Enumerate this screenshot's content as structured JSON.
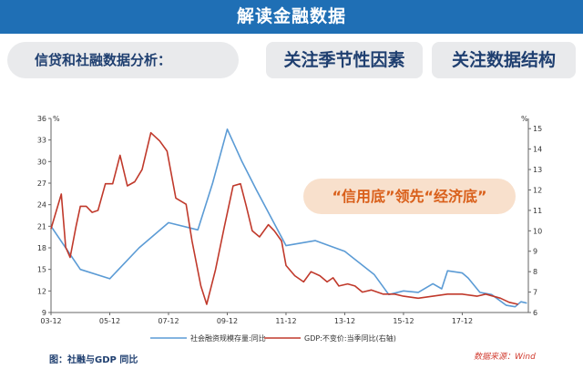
{
  "header": {
    "title": "解读金融数据"
  },
  "topics": {
    "left": "信贷和社融数据分析：",
    "mid": "关注季节性因素",
    "right": "关注数据结构"
  },
  "callout": {
    "text": "“信用底”领先“经济底”"
  },
  "caption": {
    "figure": "图：社融与GDP 同比",
    "source": "数据来源：Wind"
  },
  "colors": {
    "banner": "#1f6fb5",
    "pill": "#e9eaec",
    "callout_bg": "#f8e0cc",
    "callout_text": "#d95f1a",
    "line_blue": "#5b9bd5",
    "line_red": "#c0392b"
  },
  "chart_data": {
    "type": "line",
    "title": "",
    "x_labels": [
      "03-12",
      "05-12",
      "07-12",
      "09-12",
      "11-12",
      "13-12",
      "15-12",
      "17-12"
    ],
    "x_range": [
      2003.0,
      2019.25
    ],
    "y_left": {
      "unit": "%",
      "ticks": [
        9,
        12,
        15,
        18,
        21,
        24,
        27,
        30,
        33,
        36
      ],
      "range": [
        9,
        36
      ]
    },
    "y_right": {
      "unit": "%",
      "ticks": [
        6,
        7,
        8,
        9,
        10,
        11,
        12,
        13,
        14,
        15
      ],
      "range": [
        6,
        15.5
      ]
    },
    "grid": false,
    "legend_position": "bottom",
    "series": [
      {
        "name": "社会融资规模存量:同比",
        "axis": "left",
        "points": [
          [
            2003.0,
            21
          ],
          [
            2003.5,
            18
          ],
          [
            2004.0,
            15
          ],
          [
            2005.0,
            13.7
          ],
          [
            2006.0,
            18
          ],
          [
            2007.0,
            21.5
          ],
          [
            2008.0,
            20.5
          ],
          [
            2008.5,
            27
          ],
          [
            2009.0,
            34.5
          ],
          [
            2009.5,
            30
          ],
          [
            2010.0,
            26
          ],
          [
            2011.0,
            18.3
          ],
          [
            2012.0,
            19
          ],
          [
            2013.0,
            17.5
          ],
          [
            2014.0,
            14.3
          ],
          [
            2014.5,
            11.5
          ],
          [
            2015.0,
            12
          ],
          [
            2015.5,
            11.8
          ],
          [
            2016.0,
            13
          ],
          [
            2016.3,
            12.3
          ],
          [
            2016.5,
            14.8
          ],
          [
            2017.0,
            14.5
          ],
          [
            2017.2,
            13.8
          ],
          [
            2017.6,
            11.8
          ],
          [
            2018.0,
            11.5
          ],
          [
            2018.5,
            10
          ],
          [
            2018.8,
            9.8
          ],
          [
            2019.0,
            10.5
          ],
          [
            2019.2,
            10.3
          ]
        ]
      },
      {
        "name": "GDP:不变价:当季同比(右轴)",
        "axis": "right",
        "points": [
          [
            2003.0,
            10.1
          ],
          [
            2003.35,
            11.8
          ],
          [
            2003.5,
            9.2
          ],
          [
            2003.65,
            8.7
          ],
          [
            2003.85,
            10.2
          ],
          [
            2004.0,
            11.2
          ],
          [
            2004.2,
            11.2
          ],
          [
            2004.4,
            10.9
          ],
          [
            2004.6,
            11.0
          ],
          [
            2004.85,
            12.3
          ],
          [
            2005.1,
            12.3
          ],
          [
            2005.35,
            13.7
          ],
          [
            2005.6,
            12.2
          ],
          [
            2005.85,
            12.4
          ],
          [
            2006.1,
            13.0
          ],
          [
            2006.4,
            14.8
          ],
          [
            2006.7,
            14.4
          ],
          [
            2006.95,
            13.9
          ],
          [
            2007.25,
            11.6
          ],
          [
            2007.6,
            11.3
          ],
          [
            2007.8,
            9.5
          ],
          [
            2008.1,
            7.3
          ],
          [
            2008.3,
            6.4
          ],
          [
            2008.6,
            8.1
          ],
          [
            2008.9,
            10.2
          ],
          [
            2009.2,
            12.2
          ],
          [
            2009.45,
            12.3
          ],
          [
            2009.65,
            11.2
          ],
          [
            2009.85,
            10.0
          ],
          [
            2010.1,
            9.7
          ],
          [
            2010.4,
            10.3
          ],
          [
            2010.6,
            10.0
          ],
          [
            2010.85,
            9.5
          ],
          [
            2011.0,
            8.3
          ],
          [
            2011.3,
            7.8
          ],
          [
            2011.6,
            7.5
          ],
          [
            2011.85,
            8.0
          ],
          [
            2012.15,
            7.8
          ],
          [
            2012.4,
            7.5
          ],
          [
            2012.6,
            7.7
          ],
          [
            2012.8,
            7.3
          ],
          [
            2013.1,
            7.4
          ],
          [
            2013.35,
            7.3
          ],
          [
            2013.6,
            7.0
          ],
          [
            2013.9,
            7.1
          ],
          [
            2014.3,
            6.9
          ],
          [
            2014.7,
            6.9
          ],
          [
            2015.0,
            6.8
          ],
          [
            2015.5,
            6.7
          ],
          [
            2016.0,
            6.8
          ],
          [
            2016.5,
            6.9
          ],
          [
            2017.0,
            6.9
          ],
          [
            2017.5,
            6.8
          ],
          [
            2017.8,
            6.9
          ],
          [
            2018.3,
            6.7
          ],
          [
            2018.6,
            6.5
          ],
          [
            2018.9,
            6.4
          ]
        ]
      }
    ]
  }
}
